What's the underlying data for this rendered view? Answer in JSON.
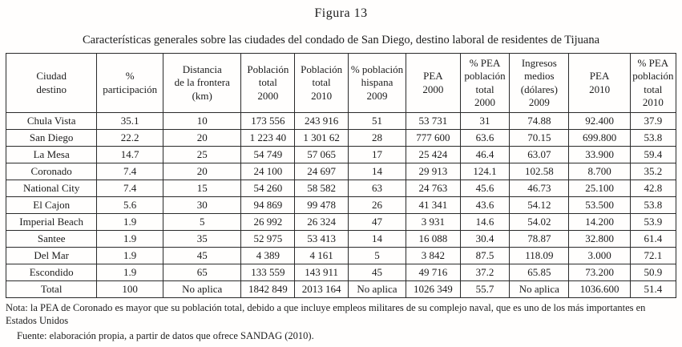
{
  "figure": {
    "title": "Figura 13",
    "caption": "Características generales sobre las ciudades del condado de San Diego, destino laboral de residentes de Tijuana"
  },
  "table": {
    "headers": [
      "Ciudad\ndestino",
      "%\nparticipación",
      "Distancia\nde la frontera\n(km)",
      "Población\ntotal\n2000",
      "Población\ntotal\n2010",
      "% población\nhispana\n2009",
      "PEA\n2000",
      "% PEA\npoblación\ntotal\n2000",
      "Ingresos\nmedios\n(dólares)\n2009",
      "PEA\n2010",
      "% PEA\npoblación\ntotal\n2010"
    ],
    "rows": [
      [
        "Chula Vista",
        "35.1",
        "10",
        "173 556",
        "243 916",
        "51",
        "53 731",
        "31",
        "74.88",
        "92.400",
        "37.9"
      ],
      [
        "San Diego",
        "22.2",
        "20",
        "1 223 40",
        "1 301 62",
        "28",
        "777 600",
        "63.6",
        "70.15",
        "699.800",
        "53.8"
      ],
      [
        "La Mesa",
        "14.7",
        "25",
        "54 749",
        "57 065",
        "17",
        "25 424",
        "46.4",
        "63.07",
        "33.900",
        "59.4"
      ],
      [
        "Coronado",
        "7.4",
        "20",
        "24 100",
        "24 697",
        "14",
        "29 913",
        "124.1",
        "102.58",
        "8.700",
        "35.2"
      ],
      [
        "National City",
        "7.4",
        "15",
        "54 260",
        "58 582",
        "63",
        "24 763",
        "45.6",
        "46.73",
        "25.100",
        "42.8"
      ],
      [
        "El Cajon",
        "5.6",
        "30",
        "94 869",
        "99 478",
        "26",
        "41 341",
        "43.6",
        "54.12",
        "53.500",
        "53.8"
      ],
      [
        "Imperial Beach",
        "1.9",
        "5",
        "26 992",
        "26 324",
        "47",
        "3 931",
        "14.6",
        "54.02",
        "14.200",
        "53.9"
      ],
      [
        "Santee",
        "1.9",
        "35",
        "52 975",
        "53 413",
        "14",
        "16 088",
        "30.4",
        "78.87",
        "32.800",
        "61.4"
      ],
      [
        "Del Mar",
        "1.9",
        "45",
        "4 389",
        "4 161",
        "5",
        "3 842",
        "87.5",
        "118.09",
        "3.000",
        "72.1"
      ],
      [
        "Escondido",
        "1.9",
        "65",
        "133 559",
        "143 911",
        "45",
        "49 716",
        "37.2",
        "65.85",
        "73.200",
        "50.9"
      ],
      [
        "Total",
        "100",
        "No aplica",
        "1842 849",
        "2013 164",
        "No aplica",
        "1026 349",
        "55.7",
        "No aplica",
        "1036.600",
        "51.4"
      ]
    ]
  },
  "notes": {
    "nota": "Nota: la PEA de Coronado es mayor que su población total, debido a que incluye empleos militares de su complejo naval, que es uno de los más importantes en Estados Unidos",
    "fuente": "Fuente: elaboración propia, a partir de datos que ofrece SANDAG (2010)."
  }
}
